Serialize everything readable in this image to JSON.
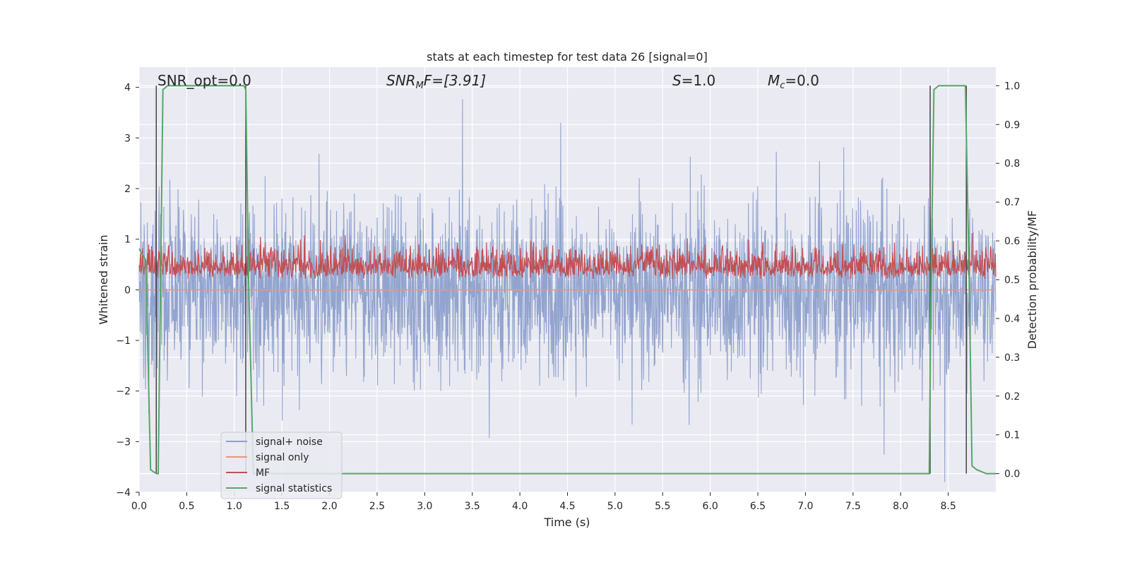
{
  "chart_data": {
    "type": "line",
    "title": "stats at each timestep for test data 26 [signal=0]",
    "xlabel": "Time (s)",
    "ylabel": "Whitened strain",
    "ylabel_right": "Detection probability/MF",
    "xlim": [
      0.0,
      9.0
    ],
    "ylim": [
      -4.0,
      4.4
    ],
    "ylim_right": [
      -0.048,
      1.048
    ],
    "x_ticks": [
      "0.0",
      "0.5",
      "1.0",
      "1.5",
      "2.0",
      "2.5",
      "3.0",
      "3.5",
      "4.0",
      "4.5",
      "5.0",
      "5.5",
      "6.0",
      "6.5",
      "7.0",
      "7.5",
      "8.0",
      "8.5"
    ],
    "y_ticks": [
      "−4",
      "−3",
      "−2",
      "−1",
      "0",
      "1",
      "2",
      "3",
      "4"
    ],
    "y_right_ticks": [
      "0.0",
      "0.1",
      "0.2",
      "0.3",
      "0.4",
      "0.5",
      "0.6",
      "0.7",
      "0.8",
      "0.9",
      "1.0"
    ],
    "annotations": {
      "snr_opt": "SNR_opt=0.0",
      "snr_mf_base": "SNR",
      "snr_mf_sub": "M",
      "snr_mf_rest": "F=[3.91]",
      "s_value_var": "S",
      "s_value_rest": "=1.0",
      "mc_var": "M",
      "mc_sub": "c",
      "mc_rest": "=0.0"
    },
    "grid": true,
    "legend_position": "lower-left",
    "series": [
      {
        "name": "signal+ noise",
        "color": "#8da0cb",
        "description_value": "noise amplitude about 0, peaks reaching about ±3.8"
      },
      {
        "name": "signal only",
        "color": "#e9967a",
        "values_constant": 0.0
      },
      {
        "name": "MF",
        "color": "#c44e52",
        "axis": "right",
        "range": [
          0.5,
          0.64
        ]
      },
      {
        "name": "signal statistics",
        "color": "#55a868",
        "axis": "right",
        "x": [
          0.0,
          0.07,
          0.12,
          0.18,
          0.2,
          0.25,
          0.3,
          1.0,
          1.1,
          1.12,
          1.15,
          1.2,
          2.0,
          3.0,
          4.0,
          5.0,
          6.0,
          7.0,
          8.0,
          8.3,
          8.32,
          8.35,
          8.4,
          8.5,
          8.6,
          8.68,
          8.72,
          8.75,
          8.8,
          8.9,
          9.0
        ],
        "values": [
          0.58,
          0.55,
          0.01,
          0.0,
          0.0,
          0.99,
          1.0,
          1.0,
          1.0,
          0.99,
          0.5,
          0.0,
          0.0,
          0.0,
          0.0,
          0.0,
          0.0,
          0.0,
          0.0,
          0.0,
          0.5,
          0.99,
          1.0,
          1.0,
          1.0,
          1.0,
          0.5,
          0.02,
          0.01,
          0.0,
          0.0
        ]
      }
    ],
    "vertical_markers_x": [
      0.18,
      1.12,
      8.31,
      8.69
    ]
  }
}
